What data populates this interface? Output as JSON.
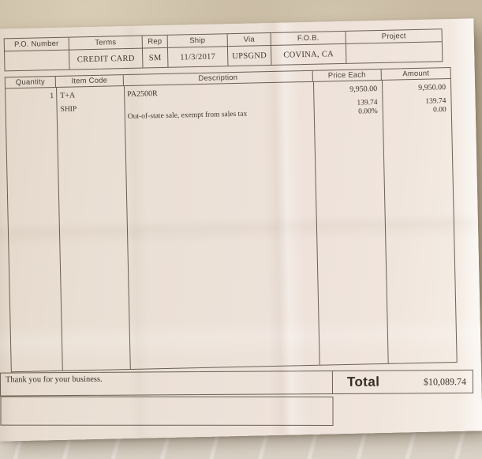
{
  "invoice": {
    "po_header": {
      "columns": [
        {
          "label": "P.O. Number",
          "value": ""
        },
        {
          "label": "Terms",
          "value": "CREDIT CARD"
        },
        {
          "label": "Rep",
          "value": "SM"
        },
        {
          "label": "Ship",
          "value": "11/3/2017"
        },
        {
          "label": "Via",
          "value": "UPSGND"
        },
        {
          "label": "F.O.B.",
          "value": "COVINA, CA"
        },
        {
          "label": "Project",
          "value": ""
        }
      ]
    },
    "items_table": {
      "headers": [
        "Quantity",
        "Item Code",
        "Description",
        "Price Each",
        "Amount"
      ],
      "rows": [
        {
          "quantity": "1",
          "item_code": "T+A",
          "description": "PA2500R",
          "price_each": "9,950.00",
          "amount": "9,950.00"
        },
        {
          "quantity": "",
          "item_code": "SHIP",
          "description": "",
          "price_each": "139.74",
          "amount": "139.74"
        },
        {
          "quantity": "",
          "item_code": "",
          "description": "Out-of-state sale, exempt from sales tax",
          "price_each": "0.00%",
          "amount": "0.00"
        }
      ]
    },
    "footer": {
      "message": "Thank you for your business.",
      "total_label": "Total",
      "total_amount": "$10,089.74"
    },
    "colors": {
      "backdrop": "#c6b8a1",
      "paper": "#ece1d7",
      "line": "#4d4436",
      "ink": "#3c352a"
    }
  }
}
